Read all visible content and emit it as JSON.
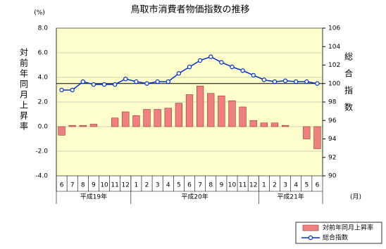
{
  "chart_data": {
    "type": "bar-line",
    "title": "鳥取市消費者物価指数の推移",
    "y_label": "対前年同月上昇率",
    "y_unit": "(%)",
    "y2_label": "総合指数",
    "x_unit": "(月)",
    "categories": [
      "6",
      "7",
      "8",
      "9",
      "10",
      "11",
      "12",
      "1",
      "2",
      "3",
      "4",
      "5",
      "6",
      "7",
      "8",
      "9",
      "10",
      "11",
      "12",
      "1",
      "2",
      "3",
      "4",
      "5",
      "6"
    ],
    "groups": [
      {
        "label": "平成19年",
        "span": 7
      },
      {
        "label": "平成20年",
        "span": 12
      },
      {
        "label": "平成21年",
        "span": 6
      }
    ],
    "series": [
      {
        "name": "対前年同月上昇率",
        "type": "bar",
        "color": "#f08080",
        "values": [
          -0.7,
          0.1,
          0.1,
          0.2,
          0.0,
          0.7,
          1.2,
          0.9,
          1.4,
          1.4,
          1.5,
          1.9,
          2.6,
          3.3,
          2.7,
          2.5,
          2.1,
          1.6,
          0.5,
          0.3,
          0.3,
          0.1,
          0.0,
          -1.0,
          -1.8
        ]
      },
      {
        "name": "総合指数",
        "type": "line",
        "axis": "y2",
        "color": "#0033cc",
        "values": [
          99.3,
          99.3,
          100.2,
          99.9,
          99.9,
          99.9,
          100.5,
          100.2,
          100.0,
          100.2,
          100.2,
          101.1,
          101.8,
          102.5,
          102.9,
          102.3,
          101.8,
          101.4,
          100.9,
          100.4,
          100.2,
          100.3,
          100.2,
          100.2,
          100.0
        ]
      }
    ],
    "ylim": [
      -4,
      8
    ],
    "yticks": [
      {
        "value": -4,
        "label": "-4.0"
      },
      {
        "value": -2,
        "label": "-2.0"
      },
      {
        "value": 0,
        "label": "0.0"
      },
      {
        "value": 2,
        "label": "2.0"
      },
      {
        "value": 4,
        "label": "4.0"
      },
      {
        "value": 6,
        "label": "6.0"
      },
      {
        "value": 8,
        "label": "8.0"
      }
    ],
    "y2lim": [
      90,
      106
    ],
    "y2ticks": [
      90,
      92,
      94,
      96,
      98,
      100,
      102,
      104,
      106
    ],
    "y2_reference_line": 100,
    "grid": true
  }
}
